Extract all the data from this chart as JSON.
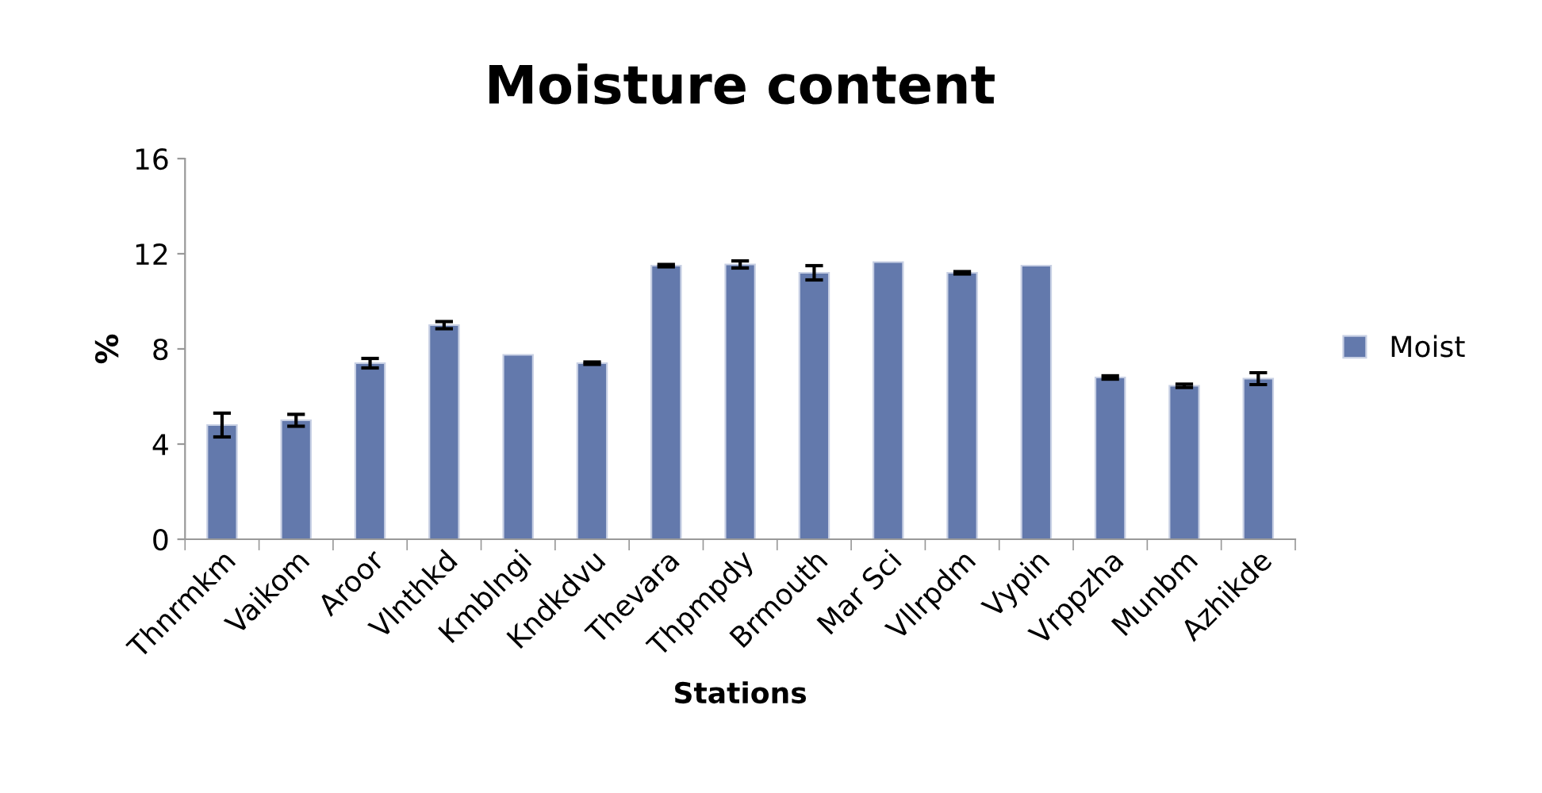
{
  "chart_data": {
    "type": "bar",
    "title": "Moisture content",
    "xlabel": "Stations",
    "ylabel": "%",
    "categories": [
      "Thnrmkm",
      "Vaikom",
      "Aroor",
      "Vlnthkd",
      "Kmblngi",
      "Kndkdvu",
      "Thevara",
      "Thpmpdy",
      "Brmouth",
      "Mar Sci",
      "Vllrpdm",
      "Vypin",
      "Vrppzha",
      "Munbm",
      "Azhikde"
    ],
    "series": [
      {
        "name": "Moist",
        "color": "#6379ac",
        "values": [
          4.8,
          5.0,
          7.4,
          9.0,
          7.75,
          7.4,
          11.5,
          11.55,
          11.2,
          11.65,
          11.2,
          11.5,
          6.8,
          6.45,
          6.75
        ],
        "errors": [
          0.5,
          0.25,
          0.2,
          0.15,
          null,
          0.05,
          0.05,
          0.15,
          0.3,
          null,
          0.05,
          null,
          0.07,
          0.07,
          0.25
        ]
      }
    ],
    "ylim": [
      0,
      16
    ],
    "yticks": [
      0,
      4,
      8,
      12,
      16
    ],
    "grid": false,
    "legend": "right"
  }
}
